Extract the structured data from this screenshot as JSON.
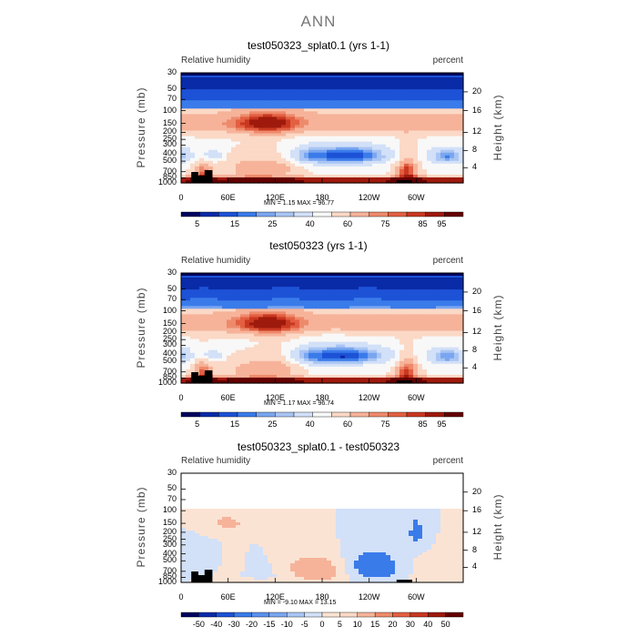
{
  "main_title": "ANN",
  "chart_data": [
    {
      "type": "heatmap",
      "title": "test050323_splat0.1 (yrs 1-1)",
      "left_label": "Relative humidity",
      "right_label": "percent",
      "ylabel": "Pressure (mb)",
      "ylabel_right": "Height (km)",
      "x_ticks": [
        "0",
        "60E",
        "120E",
        "180",
        "120W",
        "60W"
      ],
      "x_tick_values": [
        0,
        60,
        120,
        180,
        240,
        300
      ],
      "xlim": [
        0,
        360
      ],
      "y_ticks": [
        "30",
        "50",
        "70",
        "100",
        "150",
        "200",
        "250",
        "300",
        "400",
        "500",
        "700",
        "850",
        "1000"
      ],
      "y_tick_values": [
        30,
        50,
        70,
        100,
        150,
        200,
        250,
        300,
        400,
        500,
        700,
        850,
        1000
      ],
      "ylim": [
        1000,
        30
      ],
      "y_scale": "log",
      "height_ticks": [
        "20",
        "16",
        "12",
        "8",
        "4"
      ],
      "height_tick_values": [
        20,
        16,
        12,
        8,
        4
      ],
      "min_max": "MIN =    1.15   MAX =   96.77",
      "colorbar_labels": [
        "5",
        "15",
        "25",
        "40",
        "60",
        "75",
        "85",
        "95"
      ],
      "colorbar_colors": [
        "#00035e",
        "#0a2ba7",
        "#1d52d6",
        "#3a7bea",
        "#7aa6f0",
        "#a9c5f4",
        "#d2e0f8",
        "#f8f8f8",
        "#fbd9c6",
        "#f6b39a",
        "#ee8a6c",
        "#e35f42",
        "#c93821",
        "#9e1a0c",
        "#650000"
      ]
    },
    {
      "type": "heatmap",
      "title": "test050323 (yrs 1-1)",
      "left_label": "Relative humidity",
      "right_label": "percent",
      "ylabel": "Pressure (mb)",
      "ylabel_right": "Height (km)",
      "x_ticks": [
        "0",
        "60E",
        "120E",
        "180",
        "120W",
        "60W"
      ],
      "x_tick_values": [
        0,
        60,
        120,
        180,
        240,
        300
      ],
      "xlim": [
        0,
        360
      ],
      "y_ticks": [
        "30",
        "50",
        "70",
        "100",
        "150",
        "200",
        "250",
        "300",
        "400",
        "500",
        "700",
        "850",
        "1000"
      ],
      "y_tick_values": [
        30,
        50,
        70,
        100,
        150,
        200,
        250,
        300,
        400,
        500,
        700,
        850,
        1000
      ],
      "ylim": [
        1000,
        30
      ],
      "y_scale": "log",
      "height_ticks": [
        "20",
        "16",
        "12",
        "8",
        "4"
      ],
      "height_tick_values": [
        20,
        16,
        12,
        8,
        4
      ],
      "min_max": "MIN =    1.17   MAX =   96.74",
      "colorbar_labels": [
        "5",
        "15",
        "25",
        "40",
        "60",
        "75",
        "85",
        "95"
      ],
      "colorbar_colors": [
        "#00035e",
        "#0a2ba7",
        "#1d52d6",
        "#3a7bea",
        "#7aa6f0",
        "#a9c5f4",
        "#d2e0f8",
        "#f8f8f8",
        "#fbd9c6",
        "#f6b39a",
        "#ee8a6c",
        "#e35f42",
        "#c93821",
        "#9e1a0c",
        "#650000"
      ]
    },
    {
      "type": "heatmap",
      "title": "test050323_splat0.1 - test050323",
      "left_label": "Relative humidity",
      "right_label": "percent",
      "ylabel": "Pressure (mb)",
      "ylabel_right": "Height (km)",
      "x_ticks": [
        "0",
        "60E",
        "120E",
        "180",
        "120W",
        "60W"
      ],
      "x_tick_values": [
        0,
        60,
        120,
        180,
        240,
        300
      ],
      "xlim": [
        0,
        360
      ],
      "y_ticks": [
        "30",
        "50",
        "70",
        "100",
        "150",
        "200",
        "250",
        "300",
        "400",
        "500",
        "700",
        "850",
        "1000"
      ],
      "y_tick_values": [
        30,
        50,
        70,
        100,
        150,
        200,
        250,
        300,
        400,
        500,
        700,
        850,
        1000
      ],
      "ylim": [
        1000,
        30
      ],
      "y_scale": "log",
      "height_ticks": [
        "20",
        "16",
        "12",
        "8",
        "4"
      ],
      "height_tick_values": [
        20,
        16,
        12,
        8,
        4
      ],
      "min_max": "MIN =   -9.10   MAX =   13.15",
      "colorbar_labels": [
        "-50",
        "-40",
        "-30",
        "-20",
        "-15",
        "-10",
        "-5",
        "0",
        "5",
        "10",
        "15",
        "20",
        "30",
        "40",
        "50"
      ],
      "colorbar_colors": [
        "#00035e",
        "#0a2ba7",
        "#1d52d6",
        "#3a7bea",
        "#5b90ee",
        "#7aa6f0",
        "#a9c5f4",
        "#d2e0f8",
        "#fbe3d3",
        "#fbd9c6",
        "#f6b39a",
        "#ee8a6c",
        "#e35f42",
        "#c93821",
        "#9e1a0c",
        "#650000"
      ]
    }
  ]
}
